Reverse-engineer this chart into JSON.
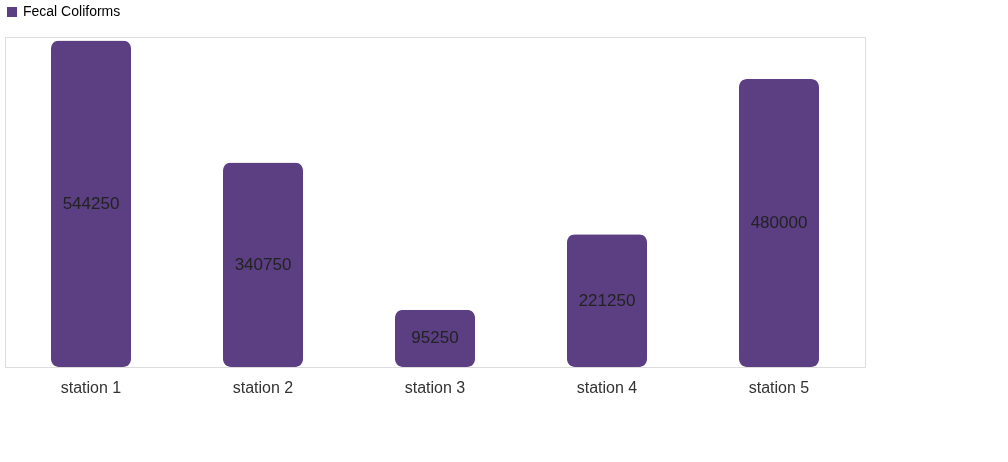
{
  "chart_data": {
    "type": "bar",
    "categories": [
      "station 1",
      "station 2",
      "station 3",
      "station 4",
      "station 5"
    ],
    "series": [
      {
        "name": "Fecal Coliforms",
        "color": "#5b3f82",
        "values": [
          544250,
          340750,
          95250,
          221250,
          480000
        ]
      }
    ],
    "data_labels": true,
    "legend": "top",
    "grid": false
  }
}
